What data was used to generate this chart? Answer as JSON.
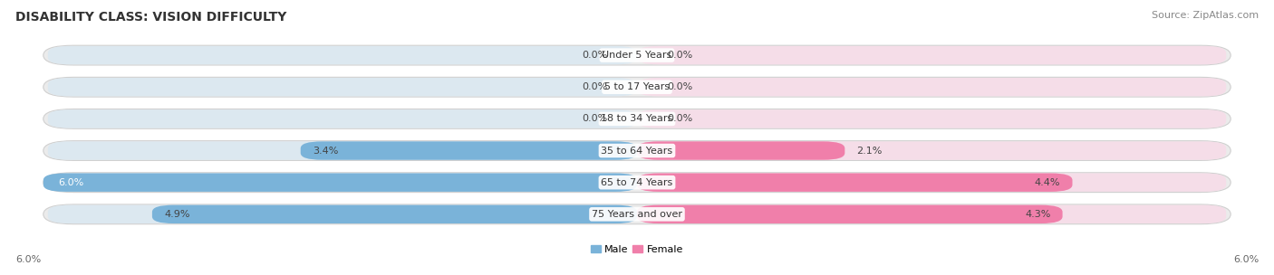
{
  "title": "DISABILITY CLASS: VISION DIFFICULTY",
  "source": "Source: ZipAtlas.com",
  "categories": [
    "Under 5 Years",
    "5 to 17 Years",
    "18 to 34 Years",
    "35 to 64 Years",
    "65 to 74 Years",
    "75 Years and over"
  ],
  "male_values": [
    0.0,
    0.0,
    0.0,
    3.4,
    6.0,
    4.9
  ],
  "female_values": [
    0.0,
    0.0,
    0.0,
    2.1,
    4.4,
    4.3
  ],
  "male_color": "#7ab3d9",
  "female_color": "#f07faa",
  "bar_bg_left": "#dce8f0",
  "bar_bg_right": "#f5dde8",
  "row_bg_color": "#ebebeb",
  "max_value": 6.0,
  "axis_label_left": "6.0%",
  "axis_label_right": "6.0%",
  "background_color": "#ffffff",
  "title_fontsize": 10,
  "source_fontsize": 8,
  "label_fontsize": 8,
  "category_fontsize": 8,
  "legend_male": "Male",
  "legend_female": "Female"
}
